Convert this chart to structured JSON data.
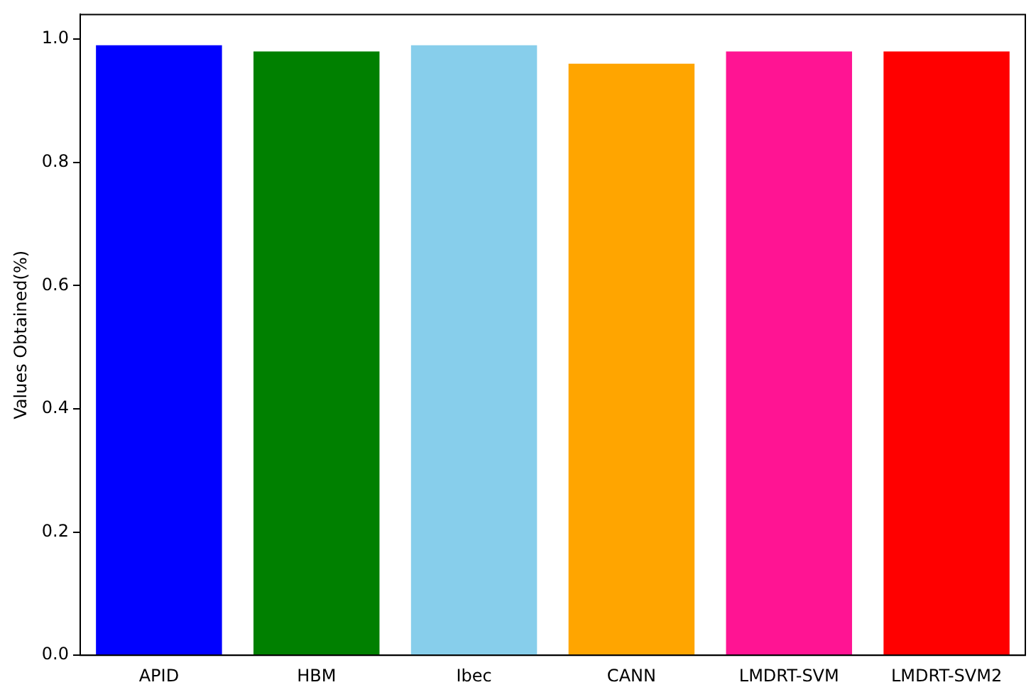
{
  "chart_data": {
    "type": "bar",
    "ylabel": "Values Obtained(%)",
    "categories": [
      "APID",
      "HBM",
      "Ibec",
      "CANN",
      "LMDRT-SVM",
      "LMDRT-SVM2"
    ],
    "values": [
      0.99,
      0.98,
      0.99,
      0.96,
      0.98,
      0.98
    ],
    "colors": [
      "#0000ff",
      "#008000",
      "#87ceeb",
      "#ffa500",
      "#ff1493",
      "#ff0000"
    ],
    "ylim": [
      0,
      1.04
    ],
    "yticks": [
      {
        "value": 0,
        "label": "0.0"
      },
      0.2,
      0.4,
      0.6,
      0.8,
      {
        "value": 1,
        "label": "1.0"
      }
    ],
    "grid": false,
    "legend": false
  }
}
